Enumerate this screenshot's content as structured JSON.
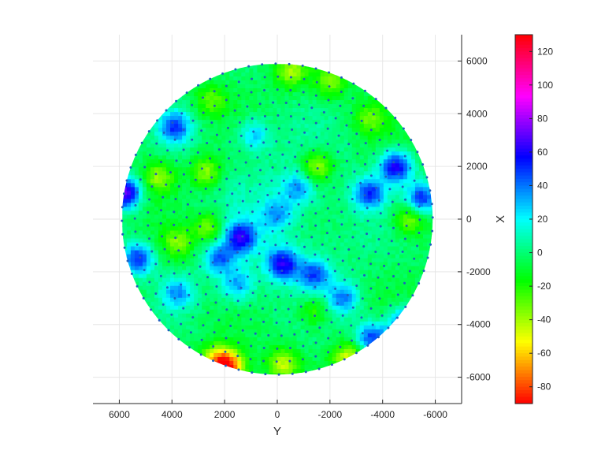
{
  "chart_data": {
    "type": "heatmap",
    "subtype": "circular wafer map with scattered measurement points",
    "title": "",
    "xlabel": "Y",
    "ylabel": "",
    "colorbar_label": "X",
    "x_axis_direction": "reversed",
    "xlim": [
      7000,
      -7000
    ],
    "ylim": [
      -7000,
      7000
    ],
    "x_ticks": [
      6000,
      4000,
      2000,
      0,
      -2000,
      -4000,
      -6000
    ],
    "x_tick_labels": [
      "6000",
      "4000",
      "2000",
      "0",
      "-2000",
      "-4000",
      "-6000"
    ],
    "y_axis_side": "right",
    "y_ticks": [
      6000,
      4000,
      2000,
      0,
      -2000,
      -4000,
      -6000
    ],
    "y_tick_labels": [
      "6000",
      "4000",
      "2000",
      "0",
      "-2000",
      "-4000",
      "-6000"
    ],
    "grid": true,
    "region_radius": 5900,
    "colorbar": {
      "range": [
        -90,
        130
      ],
      "ticks": [
        120,
        100,
        80,
        60,
        40,
        20,
        0,
        -20,
        -40,
        -60,
        -80
      ],
      "tick_labels": [
        "120",
        "100",
        "80",
        "60",
        "40",
        "20",
        "0",
        "-20",
        "-40",
        "-60",
        "-80"
      ],
      "colormap": "hsv",
      "colors": [
        "#ff0000",
        "#ffff00",
        "#00ff00",
        "#00ffff",
        "#0000ff",
        "#ff00ff",
        "#ff0000"
      ]
    },
    "background_value": -5,
    "hotspots": [
      {
        "x": 5800,
        "y": 1000,
        "value": 70
      },
      {
        "x": 5300,
        "y": -1500,
        "value": 50
      },
      {
        "x": 3900,
        "y": 3500,
        "value": 45
      },
      {
        "x": 1400,
        "y": -700,
        "value": 50
      },
      {
        "x": -1400,
        "y": -2100,
        "value": 40
      },
      {
        "x": -3500,
        "y": 1000,
        "value": 45
      },
      {
        "x": -4500,
        "y": 2000,
        "value": 60
      },
      {
        "x": -5500,
        "y": 800,
        "value": 50
      },
      {
        "x": -4800,
        "y": -4000,
        "value": 55
      },
      {
        "x": -3600,
        "y": -4500,
        "value": 50
      },
      {
        "x": -200,
        "y": -1700,
        "value": 55
      },
      {
        "x": 0,
        "y": 200,
        "value": 25
      },
      {
        "x": 1500,
        "y": -2500,
        "value": 30
      },
      {
        "x": -2500,
        "y": -3000,
        "value": 35
      },
      {
        "x": 2200,
        "y": -1500,
        "value": 35
      },
      {
        "x": -800,
        "y": 1200,
        "value": 28
      },
      {
        "x": 900,
        "y": 3200,
        "value": 25
      },
      {
        "x": 3800,
        "y": -2800,
        "value": 30
      },
      {
        "x": 1800,
        "y": -5600,
        "value": -70
      },
      {
        "x": 2300,
        "y": -5400,
        "value": -60
      },
      {
        "x": -200,
        "y": -5500,
        "value": -45
      },
      {
        "x": -2700,
        "y": -5300,
        "value": -50
      },
      {
        "x": -1500,
        "y": 2000,
        "value": -45
      },
      {
        "x": 4500,
        "y": 1600,
        "value": -40
      },
      {
        "x": 2700,
        "y": 1800,
        "value": -40
      },
      {
        "x": 2600,
        "y": -300,
        "value": -40
      },
      {
        "x": -500,
        "y": 5600,
        "value": -40
      },
      {
        "x": -2000,
        "y": 5200,
        "value": -35
      },
      {
        "x": -5000,
        "y": 0,
        "value": -40
      },
      {
        "x": -1400,
        "y": -3500,
        "value": -30
      },
      {
        "x": 2500,
        "y": 4500,
        "value": -30
      },
      {
        "x": -3500,
        "y": 3800,
        "value": -30
      },
      {
        "x": 3800,
        "y": -900,
        "value": -35
      }
    ],
    "points_per_ring": [
      1,
      8,
      14,
      20,
      26,
      32,
      38,
      44,
      50,
      56,
      62,
      68,
      72
    ]
  }
}
